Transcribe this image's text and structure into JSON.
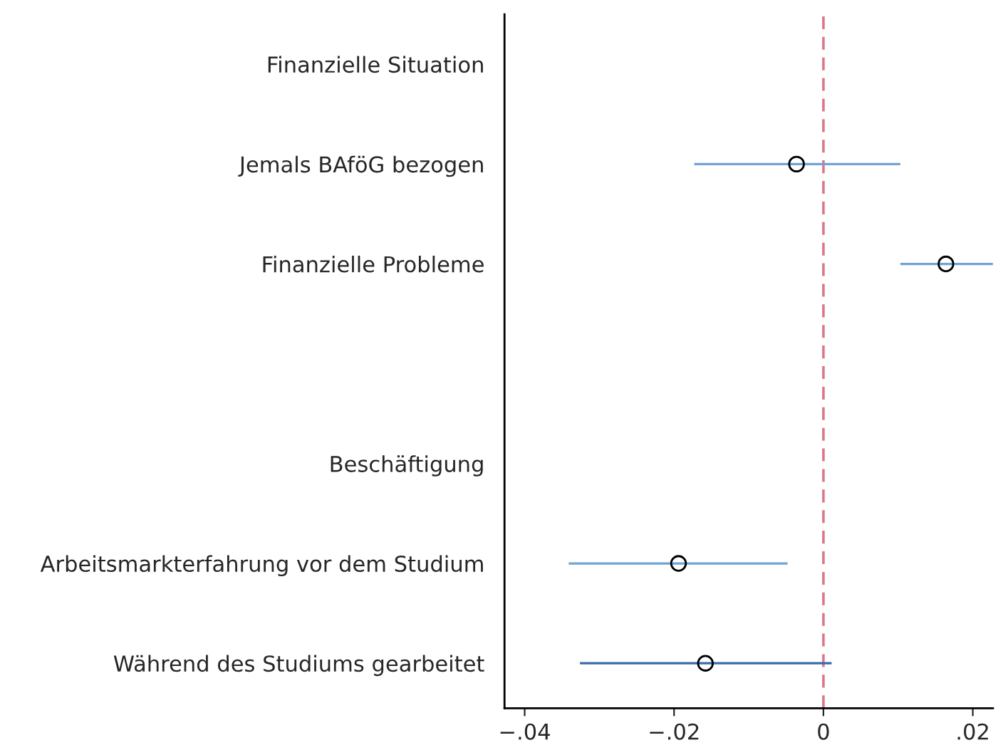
{
  "chart_data": {
    "type": "scatter",
    "orientation": "horizontal",
    "categories": [
      "Finanzielle Situation",
      "Jemals BAföG bezogen",
      "Finanzielle Probleme",
      null,
      "Beschäftigung",
      "Arbeitsmarkterfahrung vor dem Studium",
      "Während des Studiums gearbeitet"
    ],
    "values": [
      null,
      -0.0036,
      0.0164,
      null,
      null,
      -0.0194,
      -0.0158
    ],
    "errors": [
      null,
      [
        -0.0173,
        0.0103
      ],
      [
        0.0103,
        0.0227
      ],
      null,
      null,
      [
        -0.0341,
        -0.0048
      ],
      [
        -0.0326,
        0.0011
      ]
    ],
    "color": "#000000",
    "marker": "circle",
    "xlim": [
      -0.0427,
      0.0227
    ],
    "xticks": [
      {
        "value": -0.04,
        "label": "−.04"
      },
      {
        "value": -0.02,
        "label": "−.02"
      },
      0,
      {
        "value": 0.02,
        "label": ".02"
      }
    ],
    "ref_lines": [
      {
        "axis": "x",
        "value": 0,
        "color": "#d9788a",
        "line_style": "dashed"
      }
    ],
    "grid": false
  }
}
